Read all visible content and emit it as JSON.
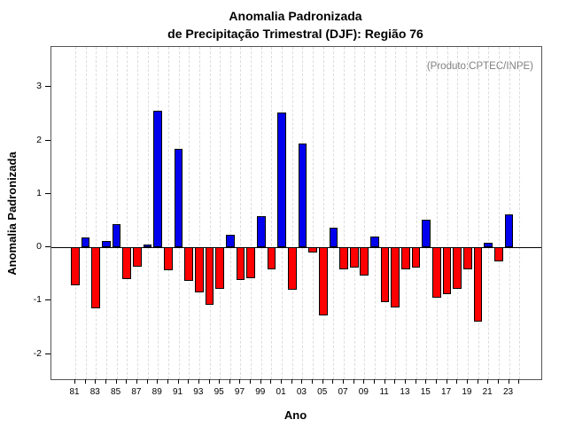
{
  "header": {
    "title_line1": "Anomalia Padronizada",
    "title_line2": "de Precipitação Trimestral (DJF): Região 76",
    "source_note": "(Produto:CPTEC/INPE)"
  },
  "chart_data": {
    "type": "bar",
    "title": "Anomalia Padronizada de Precipitação Trimestral (DJF): Região 76",
    "xlabel": "Ano",
    "ylabel": "Anomalia Padronizada",
    "annotation": "(Produto:CPTEC/INPE)",
    "years": [
      1981,
      1982,
      1983,
      1984,
      1985,
      1986,
      1987,
      1988,
      1989,
      1990,
      1991,
      1992,
      1993,
      1994,
      1995,
      1996,
      1997,
      1998,
      1999,
      2000,
      2001,
      2002,
      2003,
      2004,
      2005,
      2006,
      2007,
      2008,
      2009,
      2010,
      2011,
      2012,
      2013,
      2014,
      2015,
      2016,
      2017,
      2018,
      2019,
      2020,
      2021,
      2022,
      2023
    ],
    "categories": [
      "81",
      "82",
      "83",
      "84",
      "85",
      "86",
      "87",
      "88",
      "89",
      "90",
      "91",
      "92",
      "93",
      "94",
      "95",
      "96",
      "97",
      "98",
      "99",
      "00",
      "01",
      "02",
      "03",
      "04",
      "05",
      "06",
      "07",
      "08",
      "09",
      "10",
      "11",
      "12",
      "13",
      "14",
      "15",
      "16",
      "17",
      "18",
      "19",
      "20",
      "21",
      "22",
      "23"
    ],
    "values": [
      -0.71,
      0.19,
      -1.14,
      0.12,
      0.44,
      -0.6,
      -0.37,
      0.05,
      2.55,
      -0.43,
      1.85,
      -0.63,
      -0.85,
      -1.08,
      -0.78,
      0.23,
      -0.62,
      -0.58,
      0.59,
      -0.41,
      2.52,
      -0.8,
      1.95,
      -0.09,
      -1.28,
      0.36,
      -0.42,
      -0.38,
      -0.53,
      0.2,
      -1.03,
      -1.12,
      -0.42,
      -0.38,
      0.52,
      -0.94,
      -0.87,
      -0.77,
      -0.41,
      -1.4,
      0.09,
      -0.27,
      0.62
    ],
    "x_tick_labels": [
      "81",
      "83",
      "85",
      "87",
      "89",
      "91",
      "93",
      "95",
      "97",
      "99",
      "01",
      "03",
      "05",
      "07",
      "09",
      "11",
      "13",
      "15",
      "17",
      "19",
      "21",
      "23"
    ],
    "n_x_tick_slots": 44,
    "y_ticks": [
      -2,
      -1,
      0,
      1,
      2,
      3
    ],
    "ylim": [
      -2.47,
      3.75
    ],
    "grid": "vertical-dashed",
    "legend": "none",
    "positive_color": "#0000EE",
    "negative_color": "#FF0000",
    "bar_border_color": "#000000",
    "annotation_color": "#808080"
  }
}
